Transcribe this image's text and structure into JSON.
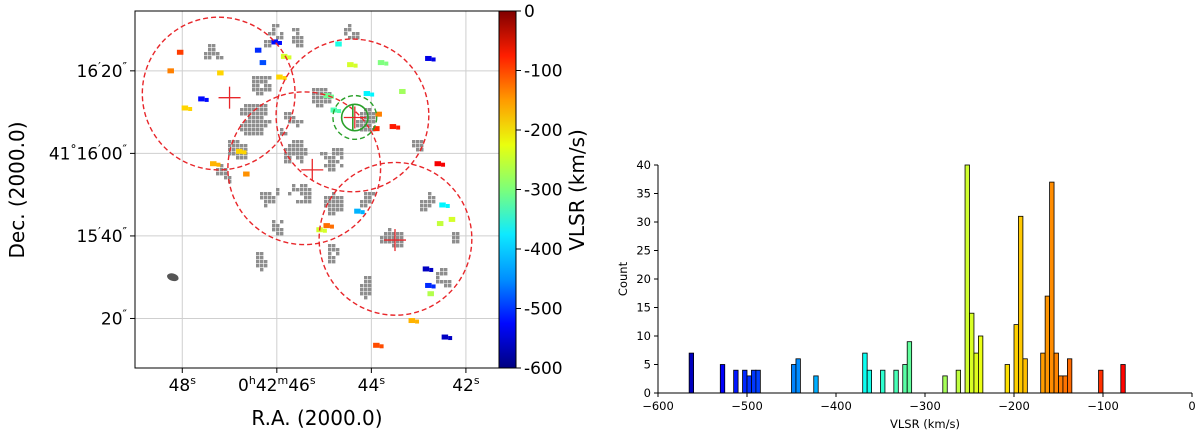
{
  "chart_data": [
    {
      "type": "scatter",
      "title": "",
      "xlabel": "R.A. (2000.0)",
      "ylabel": "Dec. (2000.0)",
      "x_ticks": [
        {
          "h": "",
          "m": "",
          "s": "48",
          "sec": 48
        },
        {
          "h": "0",
          "m": "42",
          "s": "46",
          "sec": 46
        },
        {
          "h": "",
          "m": "",
          "s": "44",
          "sec": 44
        },
        {
          "h": "",
          "m": "",
          "s": "42",
          "sec": 42
        }
      ],
      "y_ticks": [
        {
          "deg": "",
          "min": "16",
          "sec": "20",
          "arcsec": 80
        },
        {
          "deg": "41",
          "min": "16",
          "sec": "00",
          "arcsec": 60
        },
        {
          "deg": "",
          "min": "15",
          "sec": "40",
          "arcsec": 40
        },
        {
          "deg": "",
          "min": "",
          "sec": "20",
          "arcsec": 20
        }
      ],
      "xlim_sec": [
        49.0,
        41.3
      ],
      "ylim_arcsec": [
        8,
        94.5
      ],
      "grid": true,
      "colorbar": {
        "label": "VLSR (km/s)",
        "range": [
          -600,
          0
        ],
        "ticks": [
          "0",
          "-100",
          "-200",
          "-300",
          "-400",
          "-500",
          "-600"
        ],
        "tick_values": [
          0,
          -100,
          -200,
          -300,
          -400,
          -500,
          -600
        ],
        "colors": [
          "#800000",
          "#ff1e00",
          "#ff9b00",
          "#e9ff0e",
          "#7cff7a",
          "#0eeaff",
          "#0090ff",
          "#0008ff",
          "#000080"
        ]
      },
      "fields": [
        {
          "name": "field-1",
          "ra_sec": 47.23,
          "dec_arcsec": 74.5,
          "radius_arcsec": 18.5,
          "color": "#e8262a",
          "style": "dashed"
        },
        {
          "name": "field-2",
          "ra_sec": 44.4,
          "dec_arcsec": 69.2,
          "radius_arcsec": 18.5,
          "color": "#e8262a",
          "style": "dashed"
        },
        {
          "name": "field-3",
          "ra_sec": 45.42,
          "dec_arcsec": 56.4,
          "radius_arcsec": 18.5,
          "color": "#e8262a",
          "style": "dashed"
        },
        {
          "name": "field-4",
          "ra_sec": 43.49,
          "dec_arcsec": 39.3,
          "radius_arcsec": 18.5,
          "color": "#e8262a",
          "style": "dashed"
        },
        {
          "name": "field-5",
          "ra_sec": 44.35,
          "dec_arcsec": 68.7,
          "radius_arcsec": 5.3,
          "color": "#2aa02a",
          "style": "dashed"
        }
      ],
      "field_centers": [
        {
          "ra_sec": 47.0,
          "dec_arcsec": 73.5,
          "color": "#e8262a"
        },
        {
          "ra_sec": 45.25,
          "dec_arcsec": 56.0,
          "color": "#e8262a"
        },
        {
          "ra_sec": 44.35,
          "dec_arcsec": 68.7,
          "color": "#e8262a"
        },
        {
          "ra_sec": 43.5,
          "dec_arcsec": 39.0,
          "color": "#e8262a"
        }
      ],
      "green_marker": {
        "ra_sec": 44.35,
        "dec_arcsec": 68.7,
        "radius_arcsec": 3.2,
        "color": "#2aa02a"
      },
      "beam": {
        "ra_sec": 48.2,
        "dec_arcsec": 30.0,
        "major_arcsec": 1.6,
        "minor_arcsec": 1.0,
        "color": "#555555"
      },
      "grey_clumps": [
        {
          "ra": 46.55,
          "dec": 69.5,
          "n": 45,
          "s": 3.5
        },
        {
          "ra": 45.65,
          "dec": 61.0,
          "n": 20,
          "s": 2.5
        },
        {
          "ra": 44.2,
          "dec": 68.8,
          "n": 22,
          "s": 2.0
        },
        {
          "ra": 46.9,
          "dec": 61.5,
          "n": 22,
          "s": 2.2
        },
        {
          "ra": 46.4,
          "dec": 77.5,
          "n": 18,
          "s": 2.0
        },
        {
          "ra": 44.9,
          "dec": 49.0,
          "n": 18,
          "s": 2.0
        },
        {
          "ra": 43.65,
          "dec": 40.0,
          "n": 20,
          "s": 2.0
        },
        {
          "ra": 45.1,
          "dec": 74.5,
          "n": 12,
          "s": 2.0
        },
        {
          "ra": 44.85,
          "dec": 59.5,
          "n": 10,
          "s": 2.5
        },
        {
          "ra": 45.6,
          "dec": 51.0,
          "n": 8,
          "s": 2.5
        },
        {
          "ra": 44.2,
          "dec": 28.5,
          "n": 8,
          "s": 2.0
        },
        {
          "ra": 44.6,
          "dec": 90.0,
          "n": 6,
          "s": 2.0
        },
        {
          "ra": 45.6,
          "dec": 89.0,
          "n": 5,
          "s": 2.0
        },
        {
          "ra": 46.2,
          "dec": 89.5,
          "n": 6,
          "s": 2.0
        },
        {
          "ra": 47.4,
          "dec": 86.0,
          "n": 6,
          "s": 2.0
        },
        {
          "ra": 42.6,
          "dec": 30.5,
          "n": 6,
          "s": 2.0
        },
        {
          "ra": 45.8,
          "dec": 68.0,
          "n": 5,
          "s": 2.5
        },
        {
          "ra": 42.9,
          "dec": 49.0,
          "n": 4,
          "s": 2.0
        },
        {
          "ra": 46.2,
          "dec": 50.0,
          "n": 5,
          "s": 2.0
        },
        {
          "ra": 44.1,
          "dec": 50.0,
          "n": 4,
          "s": 2.0
        },
        {
          "ra": 43.1,
          "dec": 63.0,
          "n": 4,
          "s": 1.5
        },
        {
          "ra": 46.1,
          "dec": 43.0,
          "n": 4,
          "s": 2.0
        },
        {
          "ra": 47.2,
          "dec": 56.0,
          "n": 4,
          "s": 2.0
        },
        {
          "ra": 46.4,
          "dec": 34.0,
          "n": 4,
          "s": 2.0
        },
        {
          "ra": 44.9,
          "dec": 36.0,
          "n": 4,
          "s": 2.0
        },
        {
          "ra": 42.4,
          "dec": 40.0,
          "n": 3,
          "s": 1.5
        }
      ],
      "colored_pixels": [
        {
          "ra": 48.25,
          "dec": 80.0,
          "v": -150
        },
        {
          "ra": 47.95,
          "dec": 71.0,
          "v": -200
        },
        {
          "ra": 48.05,
          "dec": 84.5,
          "v": -110
        },
        {
          "ra": 47.35,
          "dec": 57.5,
          "v": -180
        },
        {
          "ra": 46.65,
          "dec": 55.0,
          "v": -160
        },
        {
          "ra": 46.8,
          "dec": 60.5,
          "v": -200
        },
        {
          "ra": 47.6,
          "dec": 73.2,
          "v": -520
        },
        {
          "ra": 47.2,
          "dec": 79.5,
          "v": -200
        },
        {
          "ra": 46.4,
          "dec": 85.0,
          "v": -500
        },
        {
          "ra": 46.05,
          "dec": 87.0,
          "v": -520
        },
        {
          "ra": 46.3,
          "dec": 82.0,
          "v": -480
        },
        {
          "ra": 45.85,
          "dec": 83.5,
          "v": -250
        },
        {
          "ra": 45.95,
          "dec": 78.5,
          "v": -200
        },
        {
          "ra": 44.7,
          "dec": 86.5,
          "v": -360
        },
        {
          "ra": 44.45,
          "dec": 81.5,
          "v": -250
        },
        {
          "ra": 43.8,
          "dec": 82.0,
          "v": -300
        },
        {
          "ra": 42.8,
          "dec": 83.0,
          "v": -540
        },
        {
          "ra": 43.35,
          "dec": 75.0,
          "v": -280
        },
        {
          "ra": 44.8,
          "dec": 70.5,
          "v": -330
        },
        {
          "ra": 44.95,
          "dec": 74.0,
          "v": -310
        },
        {
          "ra": 44.1,
          "dec": 74.5,
          "v": -380
        },
        {
          "ra": 43.85,
          "dec": 69.5,
          "v": -150
        },
        {
          "ra": 43.9,
          "dec": 66.0,
          "v": -100
        },
        {
          "ra": 43.55,
          "dec": 66.5,
          "v": -90
        },
        {
          "ra": 42.6,
          "dec": 57.5,
          "v": -70
        },
        {
          "ra": 42.5,
          "dec": 47.5,
          "v": -380
        },
        {
          "ra": 42.55,
          "dec": 43.0,
          "v": -260
        },
        {
          "ra": 42.3,
          "dec": 44.0,
          "v": -250
        },
        {
          "ra": 44.95,
          "dec": 42.5,
          "v": -140
        },
        {
          "ra": 45.1,
          "dec": 41.5,
          "v": -250
        },
        {
          "ra": 44.3,
          "dec": 46.0,
          "v": -420
        },
        {
          "ra": 42.85,
          "dec": 32.0,
          "v": -560
        },
        {
          "ra": 42.8,
          "dec": 28.0,
          "v": -500
        },
        {
          "ra": 42.75,
          "dec": 26.0,
          "v": -270
        },
        {
          "ra": 43.15,
          "dec": 19.5,
          "v": -180
        },
        {
          "ra": 42.45,
          "dec": 15.5,
          "v": -560
        },
        {
          "ra": 43.9,
          "dec": 13.5,
          "v": -120
        }
      ]
    },
    {
      "type": "bar",
      "title": "",
      "xlabel": "VLSR (km/s)",
      "ylabel": "Count",
      "xlim": [
        -600,
        0
      ],
      "ylim": [
        0,
        40
      ],
      "bin_width": 5,
      "x_ticks": [
        -600,
        -500,
        -400,
        -300,
        -200,
        -100,
        0
      ],
      "x_tick_labels": [
        "−600",
        "−500",
        "−400",
        "−300",
        "−200",
        "−100",
        "0"
      ],
      "y_ticks": [
        0,
        5,
        10,
        15,
        20,
        25,
        30,
        35,
        40
      ],
      "y_tick_labels": [
        "0",
        "5",
        "10",
        "15",
        "20",
        "25",
        "30",
        "35",
        "40"
      ],
      "bins": [
        {
          "x": -565,
          "count": 7
        },
        {
          "x": -530,
          "count": 5
        },
        {
          "x": -515,
          "count": 4
        },
        {
          "x": -505,
          "count": 4
        },
        {
          "x": -500,
          "count": 3
        },
        {
          "x": -495,
          "count": 4
        },
        {
          "x": -490,
          "count": 4
        },
        {
          "x": -450,
          "count": 5
        },
        {
          "x": -445,
          "count": 6
        },
        {
          "x": -425,
          "count": 3
        },
        {
          "x": -370,
          "count": 7
        },
        {
          "x": -365,
          "count": 4
        },
        {
          "x": -350,
          "count": 4
        },
        {
          "x": -335,
          "count": 4
        },
        {
          "x": -325,
          "count": 5
        },
        {
          "x": -320,
          "count": 9
        },
        {
          "x": -280,
          "count": 3
        },
        {
          "x": -265,
          "count": 4
        },
        {
          "x": -255,
          "count": 40
        },
        {
          "x": -250,
          "count": 14
        },
        {
          "x": -245,
          "count": 7
        },
        {
          "x": -240,
          "count": 10
        },
        {
          "x": -210,
          "count": 5
        },
        {
          "x": -200,
          "count": 12
        },
        {
          "x": -195,
          "count": 31
        },
        {
          "x": -190,
          "count": 6
        },
        {
          "x": -170,
          "count": 7
        },
        {
          "x": -165,
          "count": 17
        },
        {
          "x": -160,
          "count": 37
        },
        {
          "x": -155,
          "count": 7
        },
        {
          "x": -150,
          "count": 3
        },
        {
          "x": -145,
          "count": 3
        },
        {
          "x": -140,
          "count": 6
        },
        {
          "x": -105,
          "count": 4
        },
        {
          "x": -80,
          "count": 5
        }
      ]
    }
  ]
}
